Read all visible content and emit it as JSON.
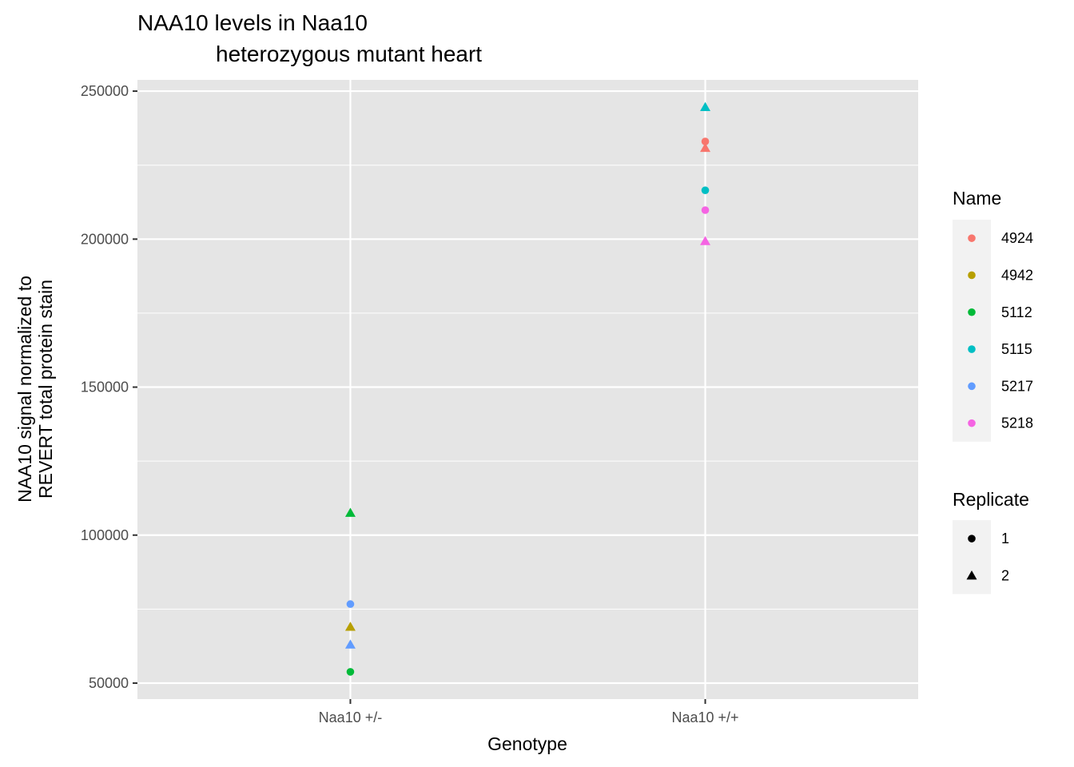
{
  "chart_data": {
    "type": "scatter",
    "title": [
      "NAA10 levels in Naa10",
      "heterozygous mutant heart"
    ],
    "x_label": "Genotype",
    "y_label": [
      "NAA10 signal normalized to",
      "REVERT total protein stain"
    ],
    "categories": [
      "Naa10 +/-",
      "Naa10 +/+"
    ],
    "ylim": [
      44600,
      253800
    ],
    "yticks": [
      50000,
      100000,
      150000,
      200000,
      250000
    ],
    "grid": true,
    "color_legend_title": "Name",
    "shape_legend_title": "Replicate",
    "shape_levels": [
      "1",
      "2"
    ],
    "series": [
      {
        "name": "4924",
        "color": "#F8766D",
        "x": [
          "Naa10 +/+",
          "Naa10 +/+"
        ],
        "replicate": [
          "1",
          "2"
        ],
        "values": [
          233000,
          230800
        ]
      },
      {
        "name": "4942",
        "color": "#B79F00",
        "x": [
          "Naa10 +/-"
        ],
        "replicate": [
          "2"
        ],
        "values": [
          69000
        ]
      },
      {
        "name": "5112",
        "color": "#00BA38",
        "x": [
          "Naa10 +/-",
          "Naa10 +/-"
        ],
        "replicate": [
          "2",
          "1"
        ],
        "values": [
          107500,
          53800
        ]
      },
      {
        "name": "5115",
        "color": "#00BFC4",
        "x": [
          "Naa10 +/+",
          "Naa10 +/+"
        ],
        "replicate": [
          "2",
          "1"
        ],
        "values": [
          244600,
          216500
        ]
      },
      {
        "name": "5217",
        "color": "#619CFF",
        "x": [
          "Naa10 +/-",
          "Naa10 +/-"
        ],
        "replicate": [
          "1",
          "2"
        ],
        "values": [
          76700,
          63000
        ]
      },
      {
        "name": "5218",
        "color": "#F564E3",
        "x": [
          "Naa10 +/+",
          "Naa10 +/+"
        ],
        "replicate": [
          "1",
          "2"
        ],
        "values": [
          209800,
          199300
        ]
      }
    ]
  }
}
